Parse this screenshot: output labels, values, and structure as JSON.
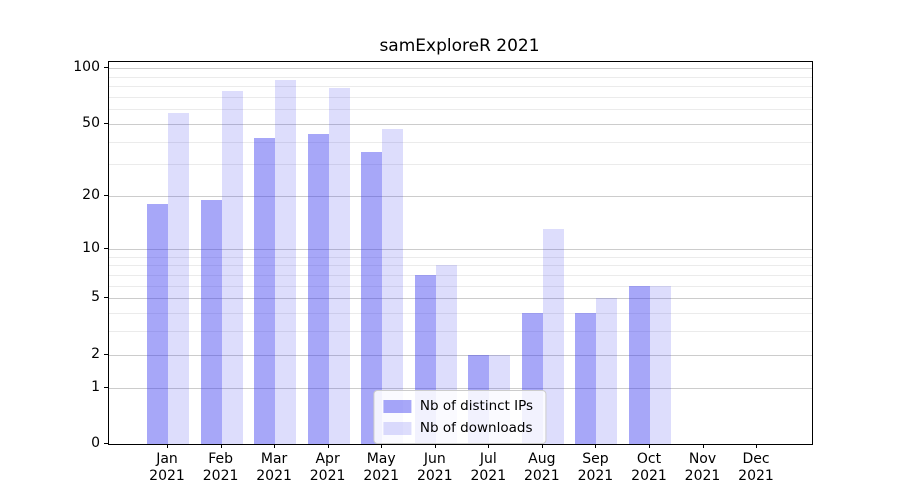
{
  "chart_data": {
    "type": "bar",
    "title": "samExploreR 2021",
    "months": [
      "Jan",
      "Feb",
      "Mar",
      "Apr",
      "May",
      "Jun",
      "Jul",
      "Aug",
      "Sep",
      "Oct",
      "Nov",
      "Dec"
    ],
    "year_label": "2021",
    "categories": [
      "Jan 2021",
      "Feb 2021",
      "Mar 2021",
      "Apr 2021",
      "May 2021",
      "Jun 2021",
      "Jul 2021",
      "Aug 2021",
      "Sep 2021",
      "Oct 2021",
      "Nov 2021",
      "Dec 2021"
    ],
    "series": [
      {
        "name": "Nb of distinct IPs",
        "key": "distinct-ips",
        "color": "#a7a7f8",
        "color_rgba": "rgba(55,55,240,0.44)",
        "values": [
          18,
          19,
          42,
          44,
          35,
          7,
          2,
          4,
          4,
          6,
          0,
          0
        ]
      },
      {
        "name": "Nb of downloads",
        "key": "downloads",
        "color": "#dcdcfc",
        "color_rgba": "rgba(55,55,240,0.17)",
        "values": [
          57,
          75,
          86,
          78,
          47,
          8,
          2,
          13,
          5,
          6,
          0,
          0
        ]
      }
    ],
    "xlabel": "",
    "ylabel": "",
    "yscale": "log10(x+1)",
    "ylim": [
      0,
      108
    ],
    "y_major_ticks": [
      0,
      1,
      2,
      5,
      10,
      20,
      50,
      100
    ],
    "y_minor_gridlines": [
      3,
      4,
      6,
      7,
      8,
      9,
      30,
      40,
      60,
      70,
      80,
      90
    ],
    "grid": "horizontal",
    "legend_position": "lower center",
    "colors": {
      "axis": "#000000",
      "major_grid": "#cccccc",
      "minor_grid": "#ebebeb",
      "background": "#ffffff"
    }
  }
}
